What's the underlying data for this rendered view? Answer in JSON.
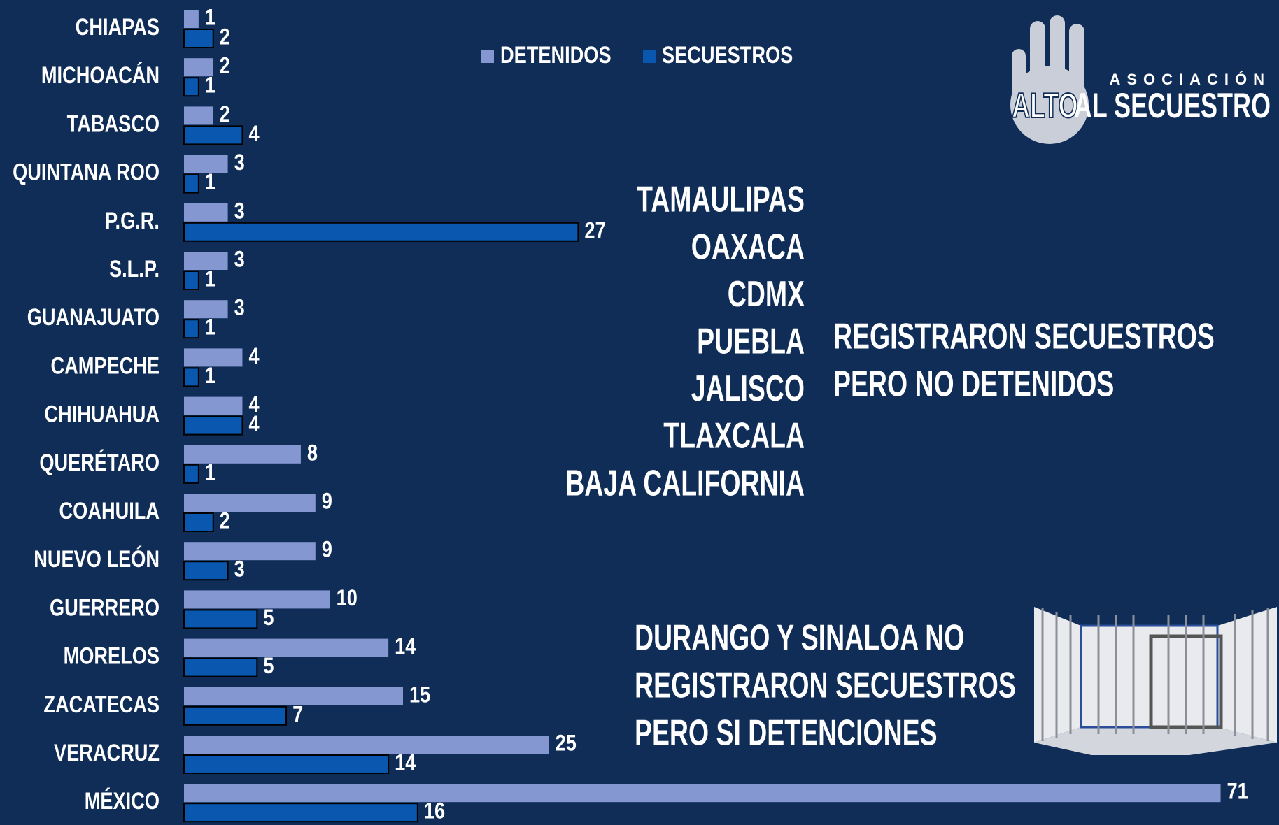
{
  "chart_data": {
    "type": "bar",
    "orientation": "horizontal",
    "categories": [
      "CHIAPAS",
      "MICHOACÁN",
      "TABASCO",
      "QUINTANA ROO",
      "P.G.R.",
      "S.L.P.",
      "GUANAJUATO",
      "CAMPECHE",
      "CHIHUAHUA",
      "QUERÉTARO",
      "COAHUILA",
      "NUEVO LEÓN",
      "GUERRERO",
      "MORELOS",
      "ZACATECAS",
      "VERACRUZ",
      "MÉXICO"
    ],
    "series": [
      {
        "name": "DETENIDOS",
        "color": "#8497d0",
        "values": [
          1,
          2,
          2,
          3,
          3,
          3,
          3,
          4,
          4,
          8,
          9,
          9,
          10,
          14,
          15,
          25,
          71
        ]
      },
      {
        "name": "SECUESTROS",
        "color": "#0a57b0",
        "values": [
          2,
          1,
          4,
          1,
          27,
          1,
          1,
          1,
          4,
          1,
          2,
          3,
          5,
          5,
          7,
          14,
          16
        ]
      }
    ],
    "xlim": [
      0,
      75
    ],
    "legend": "top",
    "annotations": {
      "states": [
        "TAMAULIPAS",
        "OAXACA",
        "CDMX",
        "PUEBLA",
        "JALISCO",
        "TLAXCALA",
        "BAJA CALIFORNIA"
      ],
      "note_secuestros": [
        "REGISTRARON SECUESTROS",
        "PERO NO DETENIDOS"
      ],
      "note_detenciones": [
        "DURANGO Y SINALOA NO",
        "REGISTRARON SECUESTROS",
        "PERO SI DETENCIONES"
      ]
    }
  },
  "logo": {
    "small": "ASOCIACIÓN",
    "left": "ALTO",
    "right": "AL SECUESTRO"
  }
}
